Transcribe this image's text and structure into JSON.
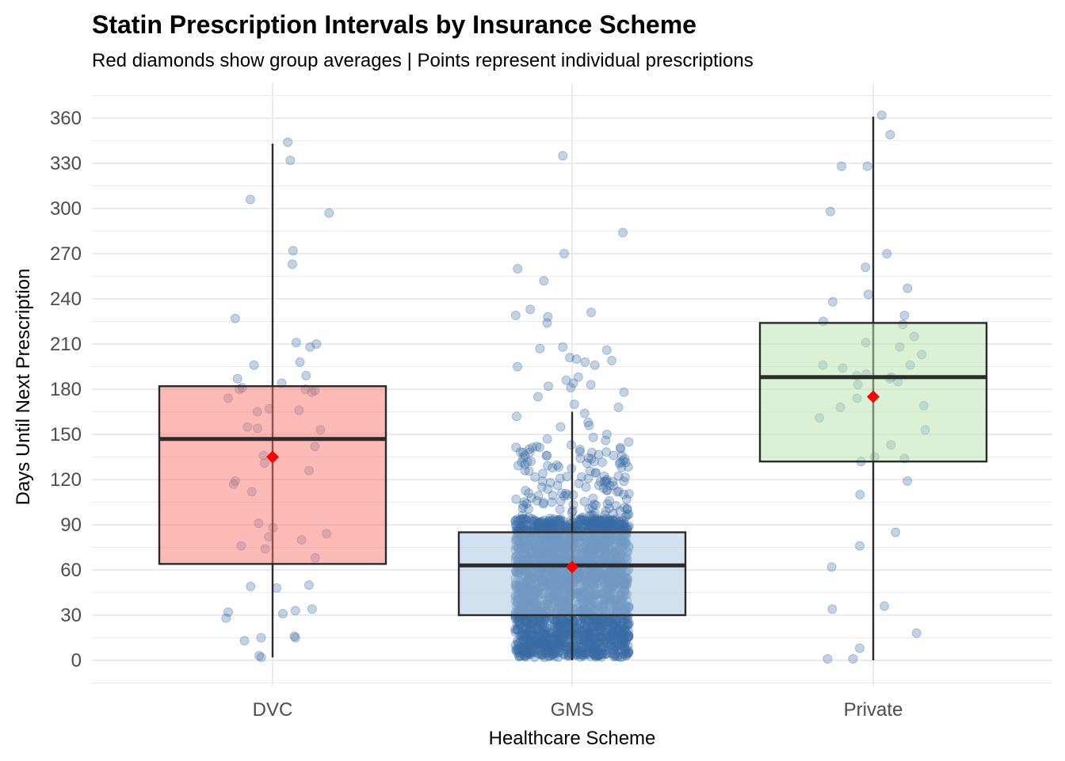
{
  "chart_data": {
    "type": "box",
    "title": "Statin Prescription Intervals by Insurance Scheme",
    "subtitle": "Red diamonds show group averages | Points represent individual prescriptions",
    "xlabel": "Healthcare Scheme",
    "ylabel": "Days Until Next Prescription",
    "ylim": [
      -15,
      382
    ],
    "yticks": [
      0,
      30,
      60,
      90,
      120,
      150,
      180,
      210,
      240,
      270,
      300,
      330,
      360
    ],
    "categories": [
      "DVC",
      "GMS",
      "Private"
    ],
    "groups": [
      {
        "name": "DVC",
        "fill": "#f8766d",
        "whisker_low": 2,
        "q1": 64,
        "median": 147,
        "q3": 182,
        "whisker_high": 343,
        "mean": 135,
        "points": [
          332,
          306,
          344,
          297,
          272,
          263,
          227,
          210,
          211,
          208,
          198,
          196,
          189,
          187,
          184,
          181,
          180,
          180,
          179,
          178,
          174,
          167,
          166,
          165,
          155,
          154,
          153,
          142,
          136,
          131,
          126,
          119,
          117,
          112,
          91,
          88,
          84,
          82,
          80,
          76,
          74,
          68,
          50,
          49,
          48,
          34,
          33,
          32,
          31,
          28,
          16,
          15,
          15,
          13,
          3,
          2
        ]
      },
      {
        "name": "GMS",
        "fill": "#a6c3e0",
        "whisker_low": 0,
        "q1": 30,
        "median": 63,
        "q3": 85,
        "whisker_high": 165,
        "mean": 62,
        "points": [
          335,
          284,
          270,
          260,
          252,
          233,
          231,
          229,
          228,
          224,
          208,
          207,
          206,
          201,
          200,
          199,
          198,
          196,
          195,
          188,
          186,
          184,
          183,
          182,
          181,
          178,
          175,
          170,
          168,
          164,
          162,
          158,
          156,
          155,
          150,
          148,
          147,
          146,
          145,
          143,
          142,
          140,
          138,
          136,
          134,
          132,
          130,
          128,
          126,
          124,
          122,
          120,
          118,
          116,
          115,
          113,
          111,
          109,
          107,
          105,
          103,
          101,
          99,
          97,
          95,
          93,
          91,
          90
        ]
      },
      {
        "name": "Private",
        "fill": "#b7e4ac",
        "whisker_low": 0,
        "q1": 132,
        "median": 188,
        "q3": 224,
        "whisker_high": 361,
        "mean": 175,
        "points": [
          362,
          349,
          328,
          328,
          298,
          270,
          261,
          247,
          243,
          238,
          229,
          225,
          223,
          215,
          211,
          208,
          203,
          196,
          196,
          194,
          190,
          189,
          188,
          187,
          185,
          183,
          174,
          169,
          168,
          161,
          153,
          143,
          135,
          134,
          132,
          119,
          110,
          85,
          76,
          62,
          36,
          34,
          18,
          8,
          1,
          1
        ]
      }
    ]
  },
  "colors": {
    "point": "#3a6ea5",
    "mean_marker": "#ff0000",
    "box_stroke": "#2b2b2b",
    "grid": "#ebebeb"
  }
}
